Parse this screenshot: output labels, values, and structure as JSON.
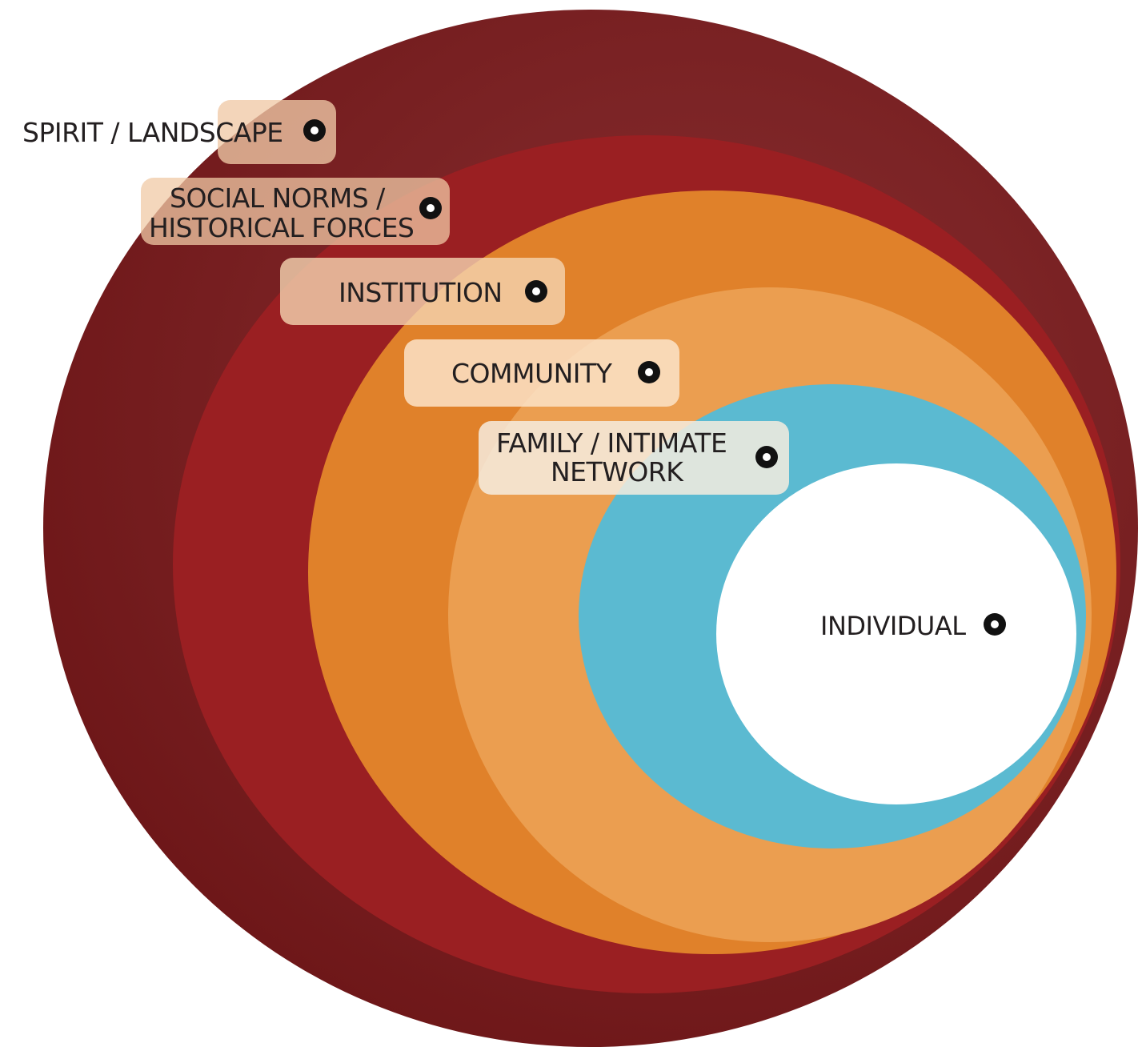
{
  "diagram": {
    "rings": [
      {
        "id": "spirit",
        "color": "#7a1719",
        "label_lines": [
          "SPIRIT / LANDSCAPE"
        ],
        "tag_fill": "#f0c9a6"
      },
      {
        "id": "social",
        "color": "#9a1f22",
        "label_lines": [
          "SOCIAL NORMS /",
          "HISTORICAL FORCES"
        ],
        "tag_fill": "#f0c9a6"
      },
      {
        "id": "institution",
        "color": "#e0812a",
        "label_lines": [
          "INSTITUTION"
        ],
        "tag_fill": "#f5d4b2"
      },
      {
        "id": "community",
        "color": "#eb9e50",
        "label_lines": [
          "COMMUNITY"
        ],
        "tag_fill": "#fbe3c8"
      },
      {
        "id": "family",
        "color": "#5bbad1",
        "label_lines": [
          "FAMILY / INTIMATE",
          "NETWORK"
        ],
        "tag_fill": "#f6ecdf"
      },
      {
        "id": "individual",
        "color": "#ffffff",
        "label_lines": [
          "INDIVIDUAL"
        ],
        "tag_fill": "none"
      }
    ]
  }
}
